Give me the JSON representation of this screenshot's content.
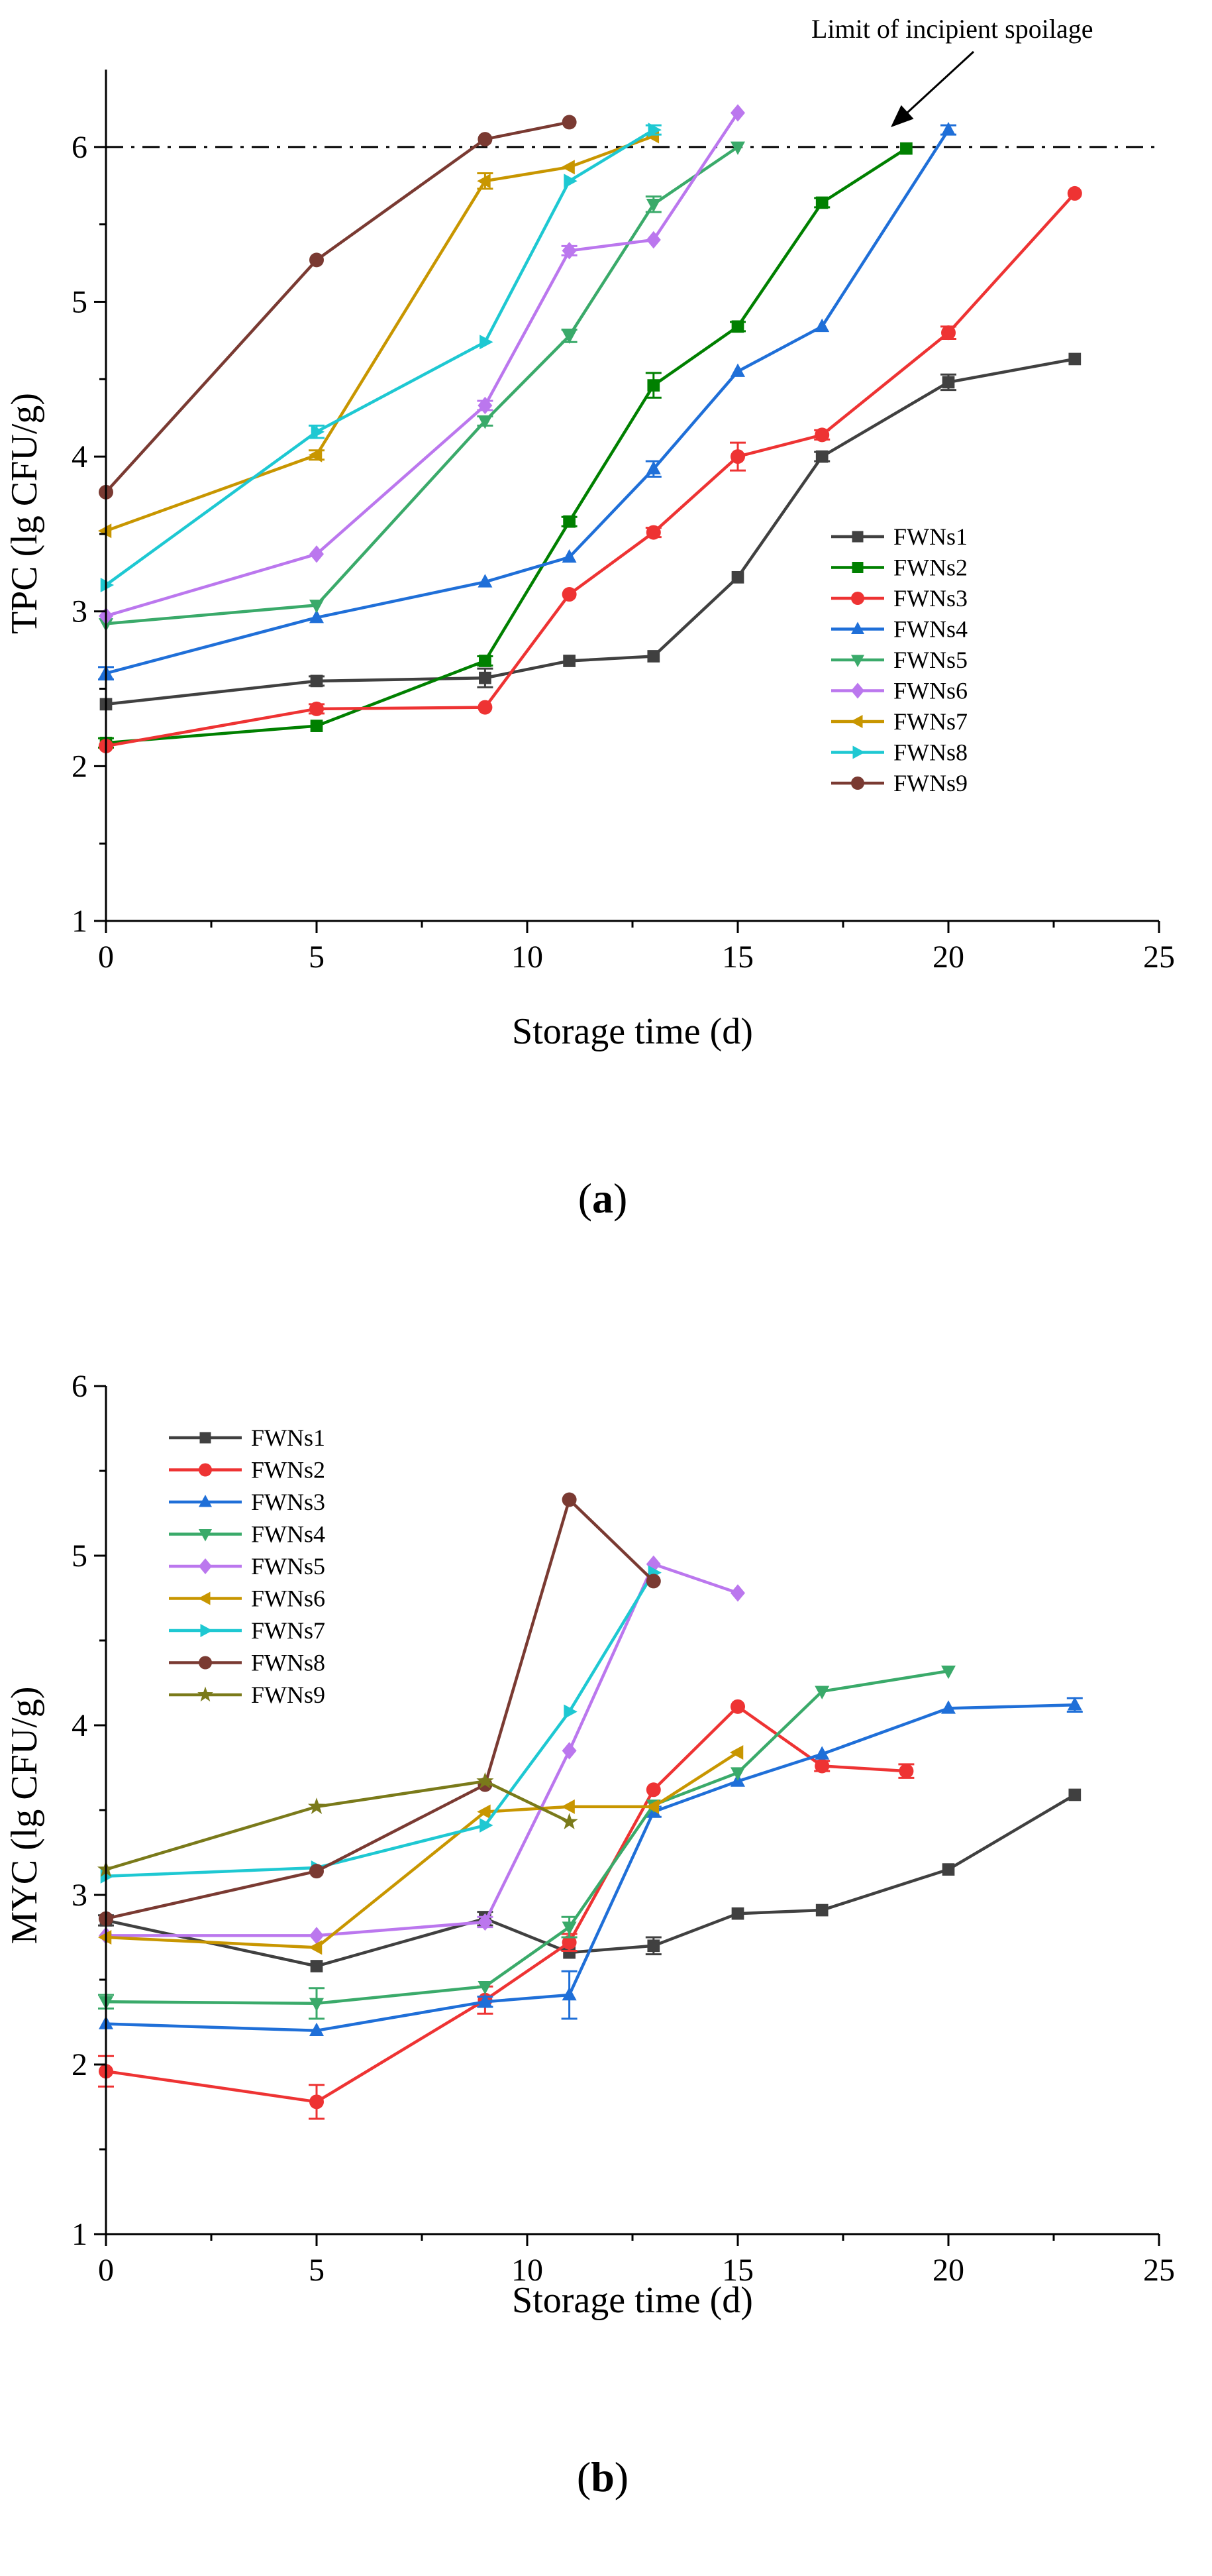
{
  "chart_data": [
    {
      "id": "a",
      "panel_label": "a",
      "type": "line",
      "xlabel": "Storage time (d)",
      "ylabel": "TPC  (lg CFU/g)",
      "xlim": [
        0,
        25
      ],
      "ylim": [
        1,
        6.5
      ],
      "xticks": [
        0,
        5,
        10,
        15,
        20,
        25
      ],
      "yticks": [
        1,
        2,
        3,
        4,
        5,
        6
      ],
      "reference_line": {
        "y": 6,
        "style": "dash-dot",
        "label": "Limit of incipient spoilage"
      },
      "legend_position": "right-middle",
      "series": [
        {
          "name": "FWNs1",
          "color": "#404040",
          "marker": "square",
          "x": [
            0,
            5,
            9,
            11,
            13,
            15,
            17,
            20,
            23
          ],
          "y": [
            2.4,
            2.55,
            2.57,
            2.68,
            2.71,
            3.22,
            4.0,
            4.48,
            4.63
          ],
          "err": [
            0.02,
            0.03,
            0.06,
            0.02,
            0.02,
            0.02,
            0.03,
            0.05,
            0.02
          ]
        },
        {
          "name": "FWNs2",
          "color": "#008000",
          "marker": "square",
          "x": [
            0,
            5,
            9,
            11,
            13,
            15,
            17,
            19
          ],
          "y": [
            2.15,
            2.26,
            2.68,
            3.58,
            4.46,
            4.84,
            5.64,
            5.99
          ],
          "err": [
            0.03,
            0.02,
            0.03,
            0.03,
            0.08,
            0.03,
            0.03,
            0.02
          ]
        },
        {
          "name": "FWNs3",
          "color": "#ee3333",
          "marker": "circle",
          "x": [
            0,
            5,
            9,
            11,
            13,
            15,
            17,
            20,
            23
          ],
          "y": [
            2.13,
            2.37,
            2.38,
            3.11,
            3.51,
            4.0,
            4.14,
            4.8,
            5.7
          ],
          "err": [
            0.02,
            0.03,
            0.02,
            0.02,
            0.03,
            0.09,
            0.03,
            0.04,
            0.02
          ]
        },
        {
          "name": "FWNs4",
          "color": "#1f6fd8",
          "marker": "triangle-up",
          "x": [
            0,
            5,
            9,
            11,
            13,
            15,
            17,
            20
          ],
          "y": [
            2.6,
            2.96,
            3.19,
            3.35,
            3.92,
            4.55,
            4.84,
            6.11
          ],
          "err": [
            0.04,
            0.02,
            0.02,
            0.02,
            0.05,
            0.02,
            0.02,
            0.03
          ]
        },
        {
          "name": "FWNs5",
          "color": "#3aaa6a",
          "marker": "triangle-down",
          "x": [
            0,
            5,
            9,
            11,
            13,
            15
          ],
          "y": [
            2.92,
            3.04,
            4.23,
            4.78,
            5.63,
            6.0
          ],
          "err": [
            0.02,
            0.02,
            0.03,
            0.04,
            0.05,
            0.02
          ]
        },
        {
          "name": "FWNs6",
          "color": "#bb77ee",
          "marker": "diamond",
          "x": [
            0,
            5,
            9,
            11,
            13,
            15
          ],
          "y": [
            2.97,
            3.37,
            4.33,
            5.33,
            5.4,
            6.22
          ],
          "err": [
            0.02,
            0.02,
            0.03,
            0.03,
            0.02,
            0.02
          ]
        },
        {
          "name": "FWNs7",
          "color": "#c89600",
          "marker": "triangle-left",
          "x": [
            0,
            5,
            9,
            11,
            13
          ],
          "y": [
            3.52,
            4.01,
            5.78,
            5.87,
            6.07
          ],
          "err": [
            0.02,
            0.03,
            0.05,
            0.02,
            0.02
          ]
        },
        {
          "name": "FWNs8",
          "color": "#1ec8d2",
          "marker": "triangle-right",
          "x": [
            0,
            5,
            9,
            11,
            13
          ],
          "y": [
            3.17,
            4.16,
            4.74,
            5.78,
            6.11
          ],
          "err": [
            0.02,
            0.04,
            0.02,
            0.02,
            0.03
          ]
        },
        {
          "name": "FWNs9",
          "color": "#7a3a32",
          "marker": "circle",
          "x": [
            0,
            5,
            9,
            11
          ],
          "y": [
            3.77,
            5.27,
            6.05,
            6.16
          ],
          "err": [
            0.02,
            0.02,
            0.02,
            0.02
          ]
        }
      ]
    },
    {
      "id": "b",
      "panel_label": "b",
      "type": "line",
      "xlabel": "Storage time (d)",
      "ylabel": "MYC (lg CFU/g)",
      "xlim": [
        0,
        25
      ],
      "ylim": [
        1,
        6
      ],
      "xticks": [
        0,
        5,
        10,
        15,
        20,
        25
      ],
      "yticks": [
        1,
        2,
        3,
        4,
        5,
        6
      ],
      "legend_position": "top-left",
      "series": [
        {
          "name": "FWNs1",
          "color": "#404040",
          "marker": "square",
          "x": [
            0,
            5,
            9,
            11,
            13,
            15,
            17,
            20,
            23
          ],
          "y": [
            2.85,
            2.58,
            2.86,
            2.66,
            2.7,
            2.89,
            2.91,
            3.15,
            3.59
          ],
          "err": [
            0.03,
            0.02,
            0.04,
            0.02,
            0.05,
            0.02,
            0.02,
            0.02,
            0.02
          ]
        },
        {
          "name": "FWNs2",
          "color": "#ee3333",
          "marker": "circle",
          "x": [
            0,
            5,
            9,
            11,
            13,
            15,
            17,
            19
          ],
          "y": [
            1.96,
            1.78,
            2.38,
            2.72,
            3.62,
            4.11,
            3.76,
            3.73
          ],
          "err": [
            0.09,
            0.1,
            0.08,
            0.05,
            0.02,
            0.02,
            0.03,
            0.04
          ]
        },
        {
          "name": "FWNs3",
          "color": "#1f6fd8",
          "marker": "triangle-up",
          "x": [
            0,
            5,
            9,
            11,
            13,
            15,
            17,
            20,
            23
          ],
          "y": [
            2.24,
            2.2,
            2.37,
            2.41,
            3.49,
            3.67,
            3.83,
            4.1,
            4.12
          ],
          "err": [
            0.02,
            0.02,
            0.03,
            0.14,
            0.03,
            0.02,
            0.02,
            0.02,
            0.04
          ]
        },
        {
          "name": "FWNs4",
          "color": "#3aaa6a",
          "marker": "triangle-down",
          "x": [
            0,
            5,
            9,
            11,
            13,
            15,
            17,
            20
          ],
          "y": [
            2.37,
            2.36,
            2.46,
            2.81,
            3.53,
            3.72,
            4.2,
            4.32
          ],
          "err": [
            0.04,
            0.09,
            0.02,
            0.06,
            0.02,
            0.02,
            0.02,
            0.02
          ]
        },
        {
          "name": "FWNs5",
          "color": "#bb77ee",
          "marker": "diamond",
          "x": [
            0,
            5,
            9,
            11,
            13,
            15
          ],
          "y": [
            2.76,
            2.76,
            2.84,
            3.85,
            4.95,
            4.78
          ],
          "err": [
            0.02,
            0.02,
            0.03,
            0.02,
            0.02,
            0.02
          ]
        },
        {
          "name": "FWNs6",
          "color": "#c89600",
          "marker": "triangle-left",
          "x": [
            0,
            5,
            9,
            11,
            13,
            15
          ],
          "y": [
            2.75,
            2.69,
            3.49,
            3.52,
            3.52,
            3.84
          ],
          "err": [
            0.02,
            0.02,
            0.02,
            0.02,
            0.02,
            0.02
          ]
        },
        {
          "name": "FWNs7",
          "color": "#1ec8d2",
          "marker": "triangle-right",
          "x": [
            0,
            5,
            9,
            11,
            13
          ],
          "y": [
            3.11,
            3.16,
            3.41,
            4.08,
            4.9
          ],
          "err": [
            0.02,
            0.02,
            0.02,
            0.02,
            0.02
          ]
        },
        {
          "name": "FWNs8",
          "color": "#7a3a32",
          "marker": "circle",
          "x": [
            0,
            5,
            9,
            11,
            13
          ],
          "y": [
            2.86,
            3.14,
            3.65,
            5.33,
            4.85
          ],
          "err": [
            0.02,
            0.02,
            0.02,
            0.02,
            0.02
          ]
        },
        {
          "name": "FWNs9",
          "color": "#7a7a1a",
          "marker": "star",
          "x": [
            0,
            5,
            9,
            11
          ],
          "y": [
            3.15,
            3.52,
            3.67,
            3.43
          ],
          "err": [
            0.02,
            0.02,
            0.02,
            0.02
          ]
        }
      ]
    }
  ]
}
